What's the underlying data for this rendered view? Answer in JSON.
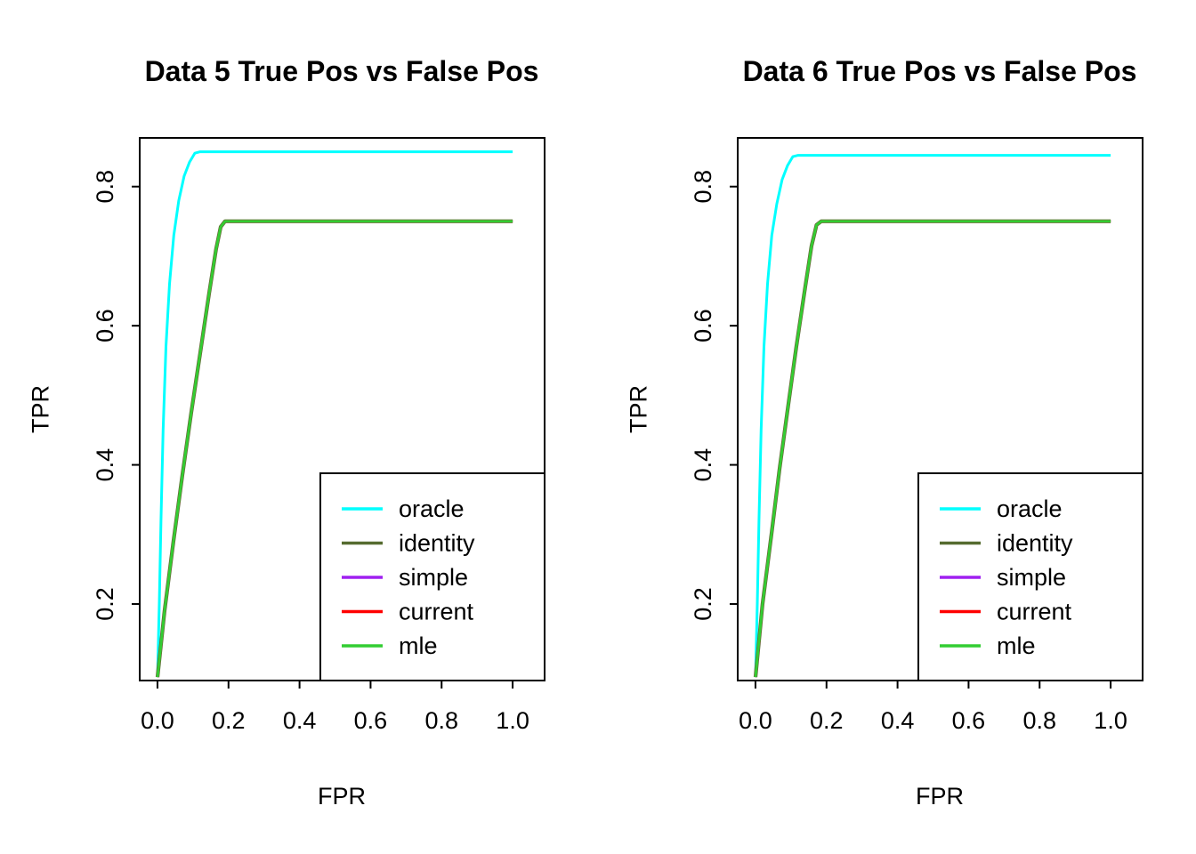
{
  "figure": {
    "background": "#ffffff",
    "border_color": "#000000"
  },
  "chart_data": [
    {
      "type": "line",
      "title": "Data 5 True Pos vs False Pos",
      "xlabel": "FPR",
      "ylabel": "TPR",
      "xlim": [
        -0.05,
        1.09
      ],
      "ylim": [
        0.09,
        0.87
      ],
      "x_ticks": [
        0.0,
        0.2,
        0.4,
        0.6,
        0.8,
        1.0
      ],
      "x_tick_labels": [
        "0.0",
        "0.2",
        "0.4",
        "0.6",
        "0.8",
        "1.0"
      ],
      "y_ticks": [
        0.2,
        0.4,
        0.6,
        0.8
      ],
      "y_tick_labels": [
        "0.2",
        "0.4",
        "0.6",
        "0.8"
      ],
      "grid": false,
      "legend_position": "bottomright",
      "series": [
        {
          "name": "oracle",
          "color": "#00FFFF",
          "line_width": 3,
          "points": [
            [
              0.0,
              0.095
            ],
            [
              0.005,
              0.2
            ],
            [
              0.01,
              0.32
            ],
            [
              0.016,
              0.45
            ],
            [
              0.024,
              0.57
            ],
            [
              0.034,
              0.66
            ],
            [
              0.046,
              0.73
            ],
            [
              0.06,
              0.78
            ],
            [
              0.075,
              0.815
            ],
            [
              0.09,
              0.835
            ],
            [
              0.105,
              0.848
            ],
            [
              0.12,
              0.85
            ],
            [
              1.0,
              0.85
            ]
          ]
        },
        {
          "name": "identity",
          "color": "#556B2F",
          "line_width": 4.25,
          "points": [
            [
              0.0,
              0.095
            ],
            [
              0.02,
              0.19
            ],
            [
              0.045,
              0.29
            ],
            [
              0.07,
              0.385
            ],
            [
              0.095,
              0.475
            ],
            [
              0.12,
              0.56
            ],
            [
              0.145,
              0.645
            ],
            [
              0.165,
              0.71
            ],
            [
              0.178,
              0.742
            ],
            [
              0.19,
              0.75
            ],
            [
              1.0,
              0.75
            ]
          ]
        },
        {
          "name": "simple",
          "color": "#A020F0",
          "line_width": 3,
          "points": [
            [
              0.0,
              0.095
            ],
            [
              0.02,
              0.19
            ],
            [
              0.045,
              0.29
            ],
            [
              0.07,
              0.385
            ],
            [
              0.095,
              0.475
            ],
            [
              0.12,
              0.56
            ],
            [
              0.145,
              0.645
            ],
            [
              0.165,
              0.71
            ],
            [
              0.178,
              0.742
            ],
            [
              0.19,
              0.75
            ],
            [
              1.0,
              0.75
            ]
          ]
        },
        {
          "name": "current",
          "color": "#FF0000",
          "line_width": 3,
          "points": [
            [
              0.0,
              0.095
            ],
            [
              0.02,
              0.19
            ],
            [
              0.045,
              0.29
            ],
            [
              0.07,
              0.385
            ],
            [
              0.095,
              0.475
            ],
            [
              0.12,
              0.56
            ],
            [
              0.145,
              0.645
            ],
            [
              0.165,
              0.71
            ],
            [
              0.178,
              0.742
            ],
            [
              0.19,
              0.75
            ],
            [
              1.0,
              0.75
            ]
          ]
        },
        {
          "name": "mle",
          "color": "#32CD32",
          "line_width": 3,
          "points": [
            [
              0.0,
              0.095
            ],
            [
              0.02,
              0.19
            ],
            [
              0.045,
              0.29
            ],
            [
              0.07,
              0.385
            ],
            [
              0.095,
              0.475
            ],
            [
              0.12,
              0.56
            ],
            [
              0.145,
              0.645
            ],
            [
              0.165,
              0.71
            ],
            [
              0.178,
              0.742
            ],
            [
              0.19,
              0.75
            ],
            [
              1.0,
              0.75
            ]
          ]
        }
      ]
    },
    {
      "type": "line",
      "title": "Data 6 True Pos vs False Pos",
      "xlabel": "FPR",
      "ylabel": "TPR",
      "xlim": [
        -0.05,
        1.09
      ],
      "ylim": [
        0.09,
        0.87
      ],
      "x_ticks": [
        0.0,
        0.2,
        0.4,
        0.6,
        0.8,
        1.0
      ],
      "x_tick_labels": [
        "0.0",
        "0.2",
        "0.4",
        "0.6",
        "0.8",
        "1.0"
      ],
      "y_ticks": [
        0.2,
        0.4,
        0.6,
        0.8
      ],
      "y_tick_labels": [
        "0.2",
        "0.4",
        "0.6",
        "0.8"
      ],
      "grid": false,
      "legend_position": "bottomright",
      "series": [
        {
          "name": "oracle",
          "color": "#00FFFF",
          "line_width": 3,
          "points": [
            [
              0.0,
              0.095
            ],
            [
              0.005,
              0.2
            ],
            [
              0.01,
              0.32
            ],
            [
              0.016,
              0.45
            ],
            [
              0.024,
              0.57
            ],
            [
              0.034,
              0.66
            ],
            [
              0.046,
              0.73
            ],
            [
              0.06,
              0.775
            ],
            [
              0.075,
              0.81
            ],
            [
              0.09,
              0.83
            ],
            [
              0.105,
              0.843
            ],
            [
              0.12,
              0.845
            ],
            [
              1.0,
              0.845
            ]
          ]
        },
        {
          "name": "identity",
          "color": "#556B2F",
          "line_width": 4.25,
          "points": [
            [
              0.0,
              0.095
            ],
            [
              0.02,
              0.2
            ],
            [
              0.045,
              0.3
            ],
            [
              0.068,
              0.395
            ],
            [
              0.092,
              0.485
            ],
            [
              0.115,
              0.57
            ],
            [
              0.14,
              0.655
            ],
            [
              0.158,
              0.715
            ],
            [
              0.172,
              0.745
            ],
            [
              0.185,
              0.75
            ],
            [
              1.0,
              0.75
            ]
          ]
        },
        {
          "name": "simple",
          "color": "#A020F0",
          "line_width": 3,
          "points": [
            [
              0.0,
              0.095
            ],
            [
              0.02,
              0.2
            ],
            [
              0.045,
              0.3
            ],
            [
              0.068,
              0.395
            ],
            [
              0.092,
              0.485
            ],
            [
              0.115,
              0.57
            ],
            [
              0.14,
              0.655
            ],
            [
              0.158,
              0.715
            ],
            [
              0.172,
              0.745
            ],
            [
              0.185,
              0.75
            ],
            [
              1.0,
              0.75
            ]
          ]
        },
        {
          "name": "current",
          "color": "#FF0000",
          "line_width": 3,
          "points": [
            [
              0.0,
              0.095
            ],
            [
              0.02,
              0.2
            ],
            [
              0.045,
              0.3
            ],
            [
              0.068,
              0.395
            ],
            [
              0.092,
              0.485
            ],
            [
              0.115,
              0.57
            ],
            [
              0.14,
              0.655
            ],
            [
              0.158,
              0.715
            ],
            [
              0.172,
              0.745
            ],
            [
              0.185,
              0.75
            ],
            [
              1.0,
              0.75
            ]
          ]
        },
        {
          "name": "mle",
          "color": "#32CD32",
          "line_width": 3,
          "points": [
            [
              0.0,
              0.095
            ],
            [
              0.02,
              0.2
            ],
            [
              0.045,
              0.3
            ],
            [
              0.068,
              0.395
            ],
            [
              0.092,
              0.485
            ],
            [
              0.115,
              0.57
            ],
            [
              0.14,
              0.655
            ],
            [
              0.158,
              0.715
            ],
            [
              0.172,
              0.745
            ],
            [
              0.185,
              0.75
            ],
            [
              1.0,
              0.75
            ]
          ]
        }
      ]
    }
  ]
}
